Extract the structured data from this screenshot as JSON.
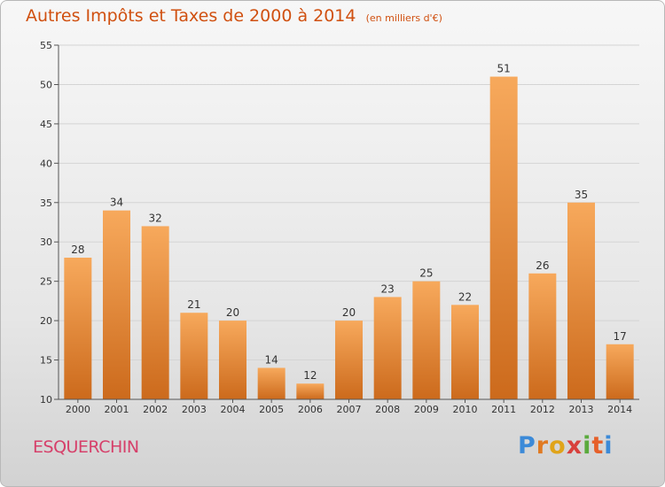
{
  "title": "Autres Impôts et Taxes de 2000 à 2014",
  "subtitle": "(en milliers d'€)",
  "commune": "ESQUERCHIN",
  "logo": "Proxiti",
  "colors": {
    "bar_light": "#f7a95c",
    "bar_dark": "#cc6a1c",
    "title": "#d05010",
    "commune": "#d6406a"
  },
  "chart_data": {
    "type": "bar",
    "title": "Autres Impôts et Taxes de 2000 à 2014",
    "subtitle": "(en milliers d'€)",
    "categories": [
      "2000",
      "2001",
      "2002",
      "2003",
      "2004",
      "2005",
      "2006",
      "2007",
      "2008",
      "2009",
      "2010",
      "2011",
      "2012",
      "2013",
      "2014"
    ],
    "values": [
      28,
      34,
      32,
      21,
      20,
      14,
      12,
      20,
      23,
      25,
      22,
      51,
      26,
      35,
      17
    ],
    "ylim": [
      10,
      55
    ],
    "yticks": [
      10,
      15,
      20,
      25,
      30,
      35,
      40,
      45,
      50,
      55
    ],
    "grid": true
  }
}
